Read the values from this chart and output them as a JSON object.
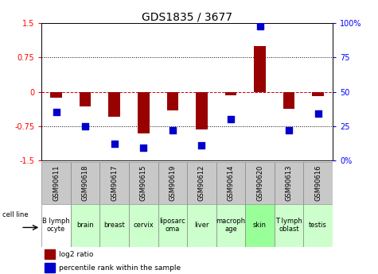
{
  "title": "GDS1835 / 3677",
  "gsm_ids": [
    "GSM90611",
    "GSM90618",
    "GSM90617",
    "GSM90615",
    "GSM90619",
    "GSM90612",
    "GSM90614",
    "GSM90620",
    "GSM90613",
    "GSM90616"
  ],
  "cell_lines": [
    "B lymph\nocyte",
    "brain",
    "breast",
    "cervix",
    "liposarc\noma",
    "liver",
    "macroph\nage",
    "skin",
    "T lymph\noblast",
    "testis"
  ],
  "cell_line_colors": [
    "#ffffff",
    "#ccffcc",
    "#ccffcc",
    "#ccffcc",
    "#ccffcc",
    "#ccffcc",
    "#ccffcc",
    "#99ff99",
    "#ccffcc",
    "#ccffcc"
  ],
  "log2_ratio": [
    -0.13,
    -0.32,
    -0.55,
    -0.92,
    -0.4,
    -0.82,
    -0.08,
    1.0,
    -0.38,
    -0.1
  ],
  "percentile_rank": [
    35,
    25,
    12,
    9,
    22,
    11,
    30,
    98,
    22,
    34
  ],
  "ylim_left": [
    -1.5,
    1.5
  ],
  "ylim_right": [
    0,
    100
  ],
  "bar_color": "#990000",
  "dot_color": "#0000cc",
  "dot_size": 28,
  "bar_width": 0.4,
  "background_color": "#ffffff",
  "zero_line_color": "#cc0000",
  "dotted_line_values": [
    0.75,
    -0.75
  ],
  "right_tick_labels": [
    "0%",
    "25",
    "50",
    "75",
    "100%"
  ],
  "right_tick_positions": [
    0,
    25,
    50,
    75,
    100
  ],
  "left_tick_labels": [
    "-1.5",
    "-0.75",
    "0",
    "0.75",
    "1.5"
  ],
  "left_tick_positions": [
    -1.5,
    -0.75,
    0,
    0.75,
    1.5
  ],
  "gsm_box_color": "#c8c8c8",
  "title_fontsize": 10,
  "tick_fontsize": 7,
  "label_fontsize": 6,
  "cell_fontsize": 6
}
